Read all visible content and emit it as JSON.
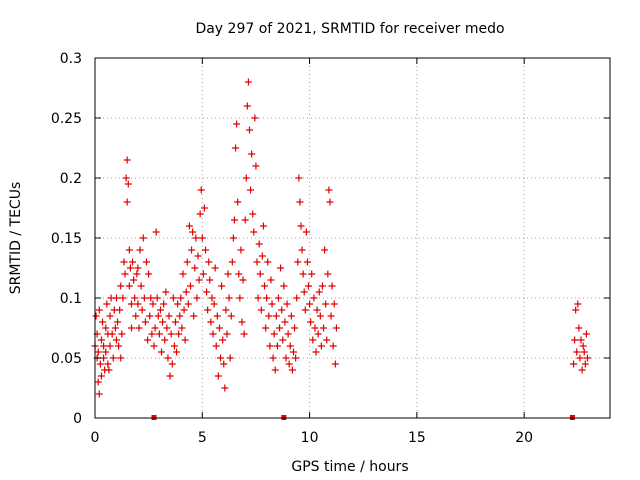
{
  "chart_data": {
    "type": "scatter",
    "title": "Day 297 of 2021, SRMTID for receiver medo",
    "xlabel": "GPS time / hours",
    "ylabel": "SRMTID / TECUs",
    "xlim": [
      0,
      24
    ],
    "ylim": [
      0,
      0.3
    ],
    "xticks": [
      0,
      5,
      10,
      15,
      20
    ],
    "xtick_labels": [
      "0",
      "5",
      "10",
      "15",
      "20"
    ],
    "yticks": [
      0,
      0.05,
      0.1,
      0.15,
      0.2,
      0.25,
      0.3
    ],
    "ytick_labels": [
      "0",
      "0.05",
      "0.1",
      "0.15",
      "0.2",
      "0.25",
      "0.3"
    ],
    "grid": true,
    "marker": "plus",
    "color": "#e00000",
    "series": [
      {
        "points": [
          [
            0.0,
            0.06
          ],
          [
            0.05,
            0.085
          ],
          [
            0.1,
            0.05
          ],
          [
            0.1,
            0.07
          ],
          [
            0.15,
            0.03
          ],
          [
            0.15,
            0.055
          ],
          [
            0.2,
            0.02
          ],
          [
            0.2,
            0.09
          ],
          [
            0.25,
            0.045
          ],
          [
            0.3,
            0.065
          ],
          [
            0.3,
            0.035
          ],
          [
            0.35,
            0.08
          ],
          [
            0.4,
            0.05
          ],
          [
            0.4,
            0.06
          ],
          [
            0.45,
            0.04
          ],
          [
            0.5,
            0.075
          ],
          [
            0.5,
            0.055
          ],
          [
            0.55,
            0.095
          ],
          [
            0.6,
            0.045
          ],
          [
            0.6,
            0.07
          ],
          [
            0.65,
            0.04
          ],
          [
            0.7,
            0.085
          ],
          [
            0.7,
            0.06
          ],
          [
            0.75,
            0.1
          ],
          [
            0.8,
            0.07
          ],
          [
            0.85,
            0.05
          ],
          [
            0.9,
            0.09
          ],
          [
            0.95,
            0.075
          ],
          [
            1.0,
            0.065
          ],
          [
            1.0,
            0.1
          ],
          [
            1.05,
            0.08
          ],
          [
            1.1,
            0.06
          ],
          [
            1.15,
            0.09
          ],
          [
            1.2,
            0.05
          ],
          [
            1.2,
            0.11
          ],
          [
            1.25,
            0.07
          ],
          [
            1.3,
            0.1
          ],
          [
            1.35,
            0.13
          ],
          [
            1.4,
            0.12
          ],
          [
            1.45,
            0.2
          ],
          [
            1.5,
            0.215
          ],
          [
            1.5,
            0.18
          ],
          [
            1.55,
            0.195
          ],
          [
            1.6,
            0.14
          ],
          [
            1.6,
            0.11
          ],
          [
            1.65,
            0.125
          ],
          [
            1.7,
            0.095
          ],
          [
            1.7,
            0.075
          ],
          [
            1.75,
            0.13
          ],
          [
            1.8,
            0.115
          ],
          [
            1.85,
            0.1
          ],
          [
            1.9,
            0.085
          ],
          [
            1.95,
            0.12
          ],
          [
            2.0,
            0.095
          ],
          [
            2.0,
            0.125
          ],
          [
            2.05,
            0.075
          ],
          [
            2.1,
            0.14
          ],
          [
            2.15,
            0.11
          ],
          [
            2.2,
            0.09
          ],
          [
            2.25,
            0.15
          ],
          [
            2.3,
            0.1
          ],
          [
            2.35,
            0.08
          ],
          [
            2.4,
            0.13
          ],
          [
            2.45,
            0.065
          ],
          [
            2.5,
            0.12
          ],
          [
            2.55,
            0.085
          ],
          [
            2.6,
            0.1
          ],
          [
            2.65,
            0.07
          ],
          [
            2.7,
            0.095
          ],
          [
            2.75,
            0.06
          ],
          [
            2.8,
            0.075
          ],
          [
            2.85,
            0.155
          ],
          [
            2.9,
            0.1
          ],
          [
            2.95,
            0.085
          ],
          [
            3.0,
            0.07
          ],
          [
            3.05,
            0.09
          ],
          [
            3.1,
            0.055
          ],
          [
            3.15,
            0.08
          ],
          [
            3.2,
            0.095
          ],
          [
            3.25,
            0.065
          ],
          [
            3.3,
            0.105
          ],
          [
            3.35,
            0.075
          ],
          [
            3.4,
            0.05
          ],
          [
            3.45,
            0.085
          ],
          [
            3.5,
            0.035
          ],
          [
            3.55,
            0.07
          ],
          [
            3.6,
            0.045
          ],
          [
            3.65,
            0.1
          ],
          [
            3.7,
            0.06
          ],
          [
            3.75,
            0.08
          ],
          [
            3.8,
            0.055
          ],
          [
            3.85,
            0.095
          ],
          [
            3.9,
            0.07
          ],
          [
            3.95,
            0.085
          ],
          [
            4.0,
            0.1
          ],
          [
            4.05,
            0.075
          ],
          [
            4.1,
            0.12
          ],
          [
            4.15,
            0.09
          ],
          [
            4.2,
            0.065
          ],
          [
            4.25,
            0.105
          ],
          [
            4.3,
            0.13
          ],
          [
            4.35,
            0.095
          ],
          [
            4.4,
            0.16
          ],
          [
            4.45,
            0.11
          ],
          [
            4.5,
            0.14
          ],
          [
            4.55,
            0.155
          ],
          [
            4.6,
            0.085
          ],
          [
            4.65,
            0.125
          ],
          [
            4.7,
            0.15
          ],
          [
            4.75,
            0.1
          ],
          [
            4.8,
            0.135
          ],
          [
            4.85,
            0.115
          ],
          [
            4.9,
            0.17
          ],
          [
            4.95,
            0.19
          ],
          [
            5.0,
            0.15
          ],
          [
            5.05,
            0.12
          ],
          [
            5.1,
            0.175
          ],
          [
            5.15,
            0.14
          ],
          [
            5.2,
            0.105
          ],
          [
            5.25,
            0.09
          ],
          [
            5.3,
            0.13
          ],
          [
            5.35,
            0.115
          ],
          [
            5.4,
            0.08
          ],
          [
            5.45,
            0.1
          ],
          [
            5.5,
            0.07
          ],
          [
            5.55,
            0.095
          ],
          [
            5.6,
            0.125
          ],
          [
            5.65,
            0.06
          ],
          [
            5.7,
            0.085
          ],
          [
            5.75,
            0.035
          ],
          [
            5.8,
            0.075
          ],
          [
            5.85,
            0.05
          ],
          [
            5.9,
            0.11
          ],
          [
            5.95,
            0.065
          ],
          [
            6.0,
            0.045
          ],
          [
            6.05,
            0.025
          ],
          [
            6.1,
            0.09
          ],
          [
            6.15,
            0.07
          ],
          [
            6.2,
            0.12
          ],
          [
            6.25,
            0.1
          ],
          [
            6.3,
            0.05
          ],
          [
            6.35,
            0.085
          ],
          [
            6.4,
            0.13
          ],
          [
            6.45,
            0.15
          ],
          [
            6.5,
            0.165
          ],
          [
            6.55,
            0.225
          ],
          [
            6.6,
            0.245
          ],
          [
            6.65,
            0.18
          ],
          [
            6.7,
            0.12
          ],
          [
            6.75,
            0.1
          ],
          [
            6.8,
            0.14
          ],
          [
            6.85,
            0.08
          ],
          [
            6.9,
            0.115
          ],
          [
            6.95,
            0.07
          ],
          [
            7.0,
            0.165
          ],
          [
            7.05,
            0.2
          ],
          [
            7.1,
            0.26
          ],
          [
            7.15,
            0.28
          ],
          [
            7.2,
            0.24
          ],
          [
            7.25,
            0.19
          ],
          [
            7.3,
            0.22
          ],
          [
            7.35,
            0.17
          ],
          [
            7.4,
            0.155
          ],
          [
            7.45,
            0.25
          ],
          [
            7.5,
            0.21
          ],
          [
            7.55,
            0.13
          ],
          [
            7.6,
            0.1
          ],
          [
            7.65,
            0.145
          ],
          [
            7.7,
            0.12
          ],
          [
            7.75,
            0.09
          ],
          [
            7.8,
            0.135
          ],
          [
            7.85,
            0.16
          ],
          [
            7.9,
            0.11
          ],
          [
            7.95,
            0.075
          ],
          [
            8.0,
            0.1
          ],
          [
            8.05,
            0.13
          ],
          [
            8.1,
            0.085
          ],
          [
            8.15,
            0.06
          ],
          [
            8.2,
            0.115
          ],
          [
            8.25,
            0.095
          ],
          [
            8.3,
            0.05
          ],
          [
            8.35,
            0.07
          ],
          [
            8.4,
            0.04
          ],
          [
            8.45,
            0.085
          ],
          [
            8.5,
            0.06
          ],
          [
            8.55,
            0.1
          ],
          [
            8.6,
            0.075
          ],
          [
            8.65,
            0.125
          ],
          [
            8.7,
            0.09
          ],
          [
            8.75,
            0.065
          ],
          [
            8.8,
            0.11
          ],
          [
            8.85,
            0.08
          ],
          [
            8.9,
            0.05
          ],
          [
            8.95,
            0.095
          ],
          [
            9.0,
            0.07
          ],
          [
            9.05,
            0.045
          ],
          [
            9.1,
            0.06
          ],
          [
            9.15,
            0.085
          ],
          [
            9.2,
            0.04
          ],
          [
            9.25,
            0.055
          ],
          [
            9.3,
            0.075
          ],
          [
            9.35,
            0.05
          ],
          [
            9.4,
            0.1
          ],
          [
            9.45,
            0.13
          ],
          [
            9.5,
            0.2
          ],
          [
            9.55,
            0.18
          ],
          [
            9.6,
            0.16
          ],
          [
            9.65,
            0.14
          ],
          [
            9.7,
            0.12
          ],
          [
            9.75,
            0.105
          ],
          [
            9.8,
            0.09
          ],
          [
            9.85,
            0.155
          ],
          [
            9.9,
            0.13
          ],
          [
            9.95,
            0.11
          ],
          [
            10.0,
            0.095
          ],
          [
            10.05,
            0.08
          ],
          [
            10.1,
            0.12
          ],
          [
            10.15,
            0.065
          ],
          [
            10.2,
            0.1
          ],
          [
            10.25,
            0.075
          ],
          [
            10.3,
            0.055
          ],
          [
            10.35,
            0.09
          ],
          [
            10.4,
            0.07
          ],
          [
            10.45,
            0.105
          ],
          [
            10.5,
            0.085
          ],
          [
            10.55,
            0.06
          ],
          [
            10.6,
            0.11
          ],
          [
            10.65,
            0.075
          ],
          [
            10.7,
            0.14
          ],
          [
            10.75,
            0.095
          ],
          [
            10.8,
            0.065
          ],
          [
            10.85,
            0.12
          ],
          [
            10.9,
            0.19
          ],
          [
            10.95,
            0.18
          ],
          [
            11.0,
            0.085
          ],
          [
            11.05,
            0.11
          ],
          [
            11.1,
            0.06
          ],
          [
            11.15,
            0.095
          ],
          [
            11.2,
            0.045
          ],
          [
            11.25,
            0.075
          ],
          [
            22.3,
            0.045
          ],
          [
            22.35,
            0.065
          ],
          [
            22.4,
            0.09
          ],
          [
            22.45,
            0.055
          ],
          [
            22.5,
            0.095
          ],
          [
            22.55,
            0.075
          ],
          [
            22.6,
            0.05
          ],
          [
            22.65,
            0.065
          ],
          [
            22.7,
            0.04
          ],
          [
            22.75,
            0.06
          ],
          [
            22.8,
            0.055
          ],
          [
            22.85,
            0.045
          ],
          [
            22.9,
            0.07
          ],
          [
            22.95,
            0.05
          ]
        ]
      }
    ],
    "gap_markers_x": [
      2.75,
      8.8,
      22.25
    ]
  }
}
